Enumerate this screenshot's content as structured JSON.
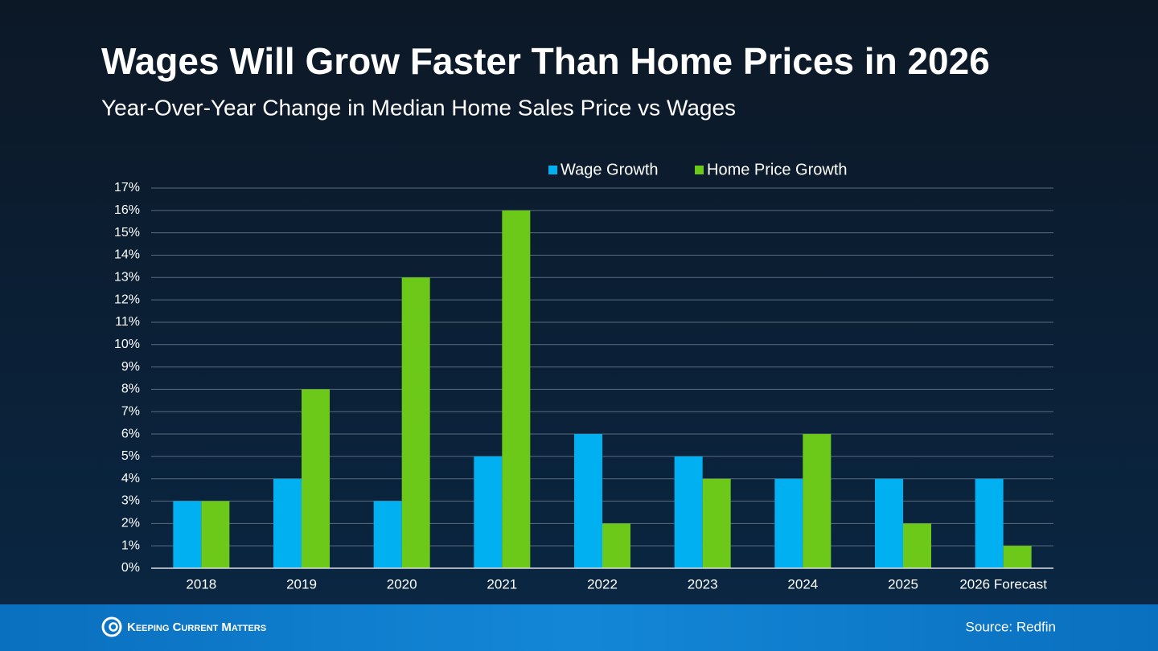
{
  "chart_data": {
    "type": "bar",
    "title": "Wages Will Grow Faster Than Home Prices in 2026",
    "subtitle": "Year-Over-Year Change in Median Home Sales Price vs Wages",
    "categories": [
      "2018",
      "2019",
      "2020",
      "2021",
      "2022",
      "2023",
      "2024",
      "2025",
      "2026 Forecast"
    ],
    "series": [
      {
        "name": "Wage Growth",
        "color": "#00b0f0",
        "values": [
          3,
          4,
          3,
          5,
          6,
          5,
          4,
          4,
          4
        ]
      },
      {
        "name": "Home Price Growth",
        "color": "#6cc91a",
        "values": [
          3,
          8,
          13,
          16,
          2,
          4,
          6,
          2,
          1
        ]
      }
    ],
    "ylim": [
      0,
      17
    ],
    "yticks": [
      {
        "value": 0,
        "label": "0%"
      },
      {
        "value": 1,
        "label": "1%"
      },
      {
        "value": 2,
        "label": "2%"
      },
      {
        "value": 3,
        "label": "3%"
      },
      {
        "value": 4,
        "label": "4%"
      },
      {
        "value": 5,
        "label": "5%"
      },
      {
        "value": 6,
        "label": "6%"
      },
      {
        "value": 7,
        "label": "7%"
      },
      {
        "value": 8,
        "label": "8%"
      },
      {
        "value": 9,
        "label": "9%"
      },
      {
        "value": 10,
        "label": "10%"
      },
      {
        "value": 11,
        "label": "11%"
      },
      {
        "value": 12,
        "label": "12%"
      },
      {
        "value": 13,
        "label": "13%"
      },
      {
        "value": 14,
        "label": "14%"
      },
      {
        "value": 15,
        "label": "15%"
      },
      {
        "value": 16,
        "label": "16%"
      },
      {
        "value": 17,
        "label": "17%"
      }
    ],
    "grid": true,
    "legend": "top"
  },
  "footer": {
    "brand": "Keeping Current Matters",
    "source": "Source: Redfin"
  }
}
